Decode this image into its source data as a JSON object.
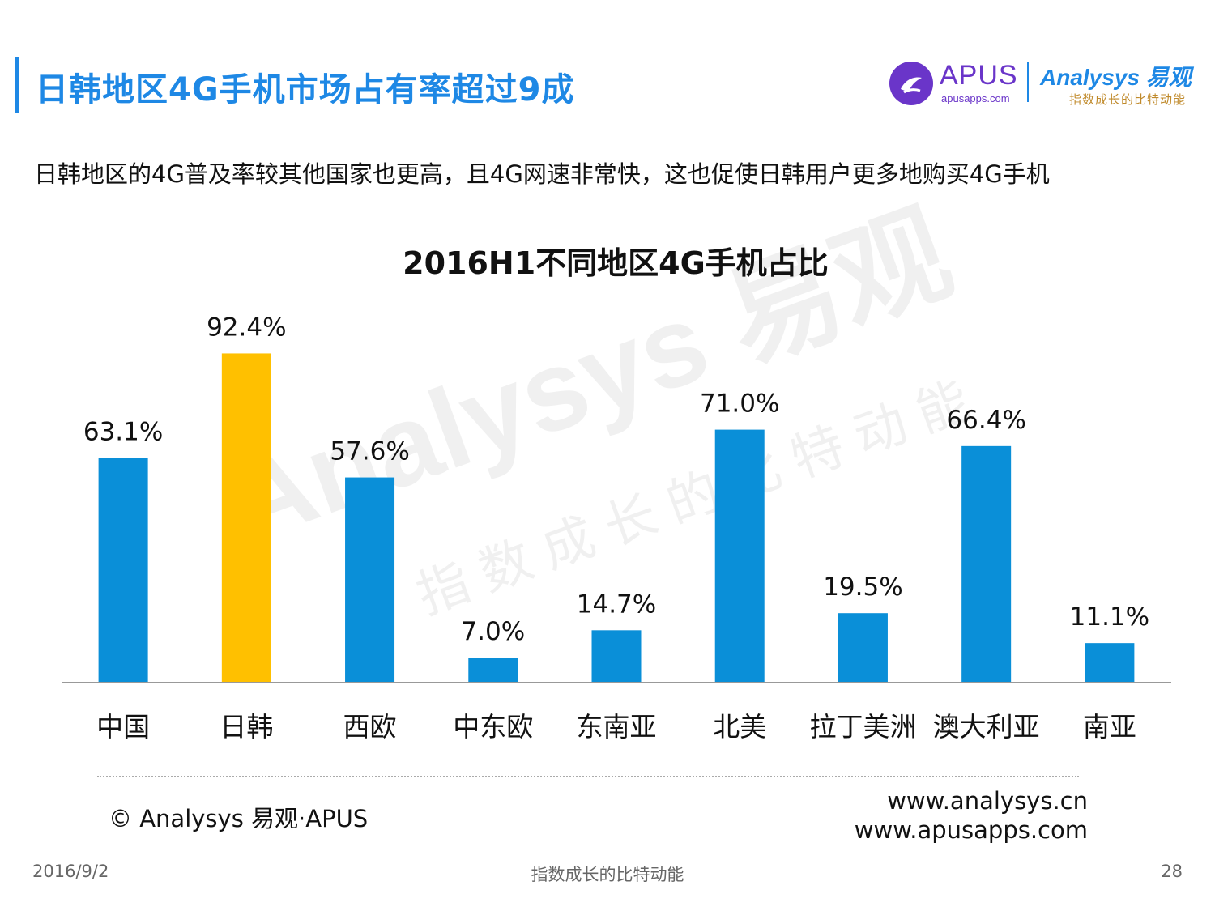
{
  "header": {
    "title": "日韩地区4G手机市场占有率超过9成",
    "subtitle": "日韩地区的4G普及率较其他国家也更高，且4G网速非常快，这也促使日韩用户更多地购买4G手机"
  },
  "logos": {
    "apus_name": "APUS",
    "apus_url": "apusapps.com",
    "analysys_name": "Analysys 易观",
    "analysys_tagline": "指数成长的比特动能"
  },
  "watermark": {
    "main": "Analysys 易观",
    "tagline": "指数成长的比特动能"
  },
  "chart_data": {
    "type": "bar",
    "title": "2016H1不同地区4G手机占比",
    "categories": [
      "中国",
      "日韩",
      "西欧",
      "中东欧",
      "东南亚",
      "北美",
      "拉丁美洲",
      "澳大利亚",
      "南亚"
    ],
    "values": [
      63.1,
      92.4,
      57.6,
      7.0,
      14.7,
      71.0,
      19.5,
      66.4,
      11.1
    ],
    "value_labels": [
      "63.1%",
      "92.4%",
      "57.6%",
      "7.0%",
      "14.7%",
      "71.0%",
      "19.5%",
      "66.4%",
      "11.1%"
    ],
    "unit": "%",
    "ylim": [
      0,
      100
    ],
    "highlight_index": 1,
    "colors": {
      "default": "#0a8fd8",
      "highlight": "#ffc000"
    },
    "grid": false,
    "legend": "none"
  },
  "footer": {
    "copyright": "© Analysys 易观·APUS",
    "url1": "www.analysys.cn",
    "url2": "www.apusapps.com",
    "date": "2016/9/2",
    "center": "指数成长的比特动能",
    "page": "28"
  }
}
